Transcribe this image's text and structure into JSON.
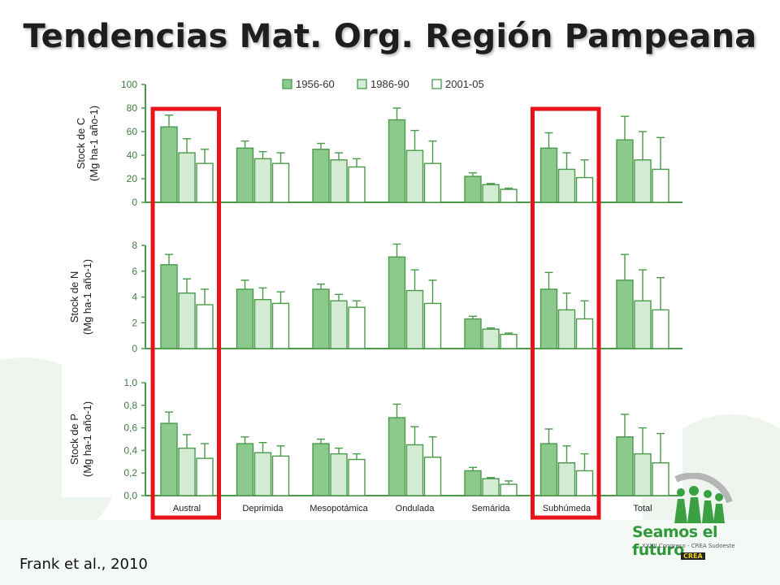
{
  "slide": {
    "title": "Tendencias Mat. Org. Región Pampeana",
    "citation": "Frank et al., 2010"
  },
  "logo": {
    "name": "Seamos el futuro",
    "subtitle": "XXXII Congreso - CREA Sudoeste",
    "badge": "CREA"
  },
  "colors": {
    "bar_dark": "#8cc98c",
    "bar_light": "#d3ead3",
    "bar_white": "#ffffff",
    "axis": "#4a9a4a",
    "highlight": "#e8121b"
  },
  "highlighted_categories": [
    "Austral",
    "Subhúmeda"
  ],
  "chart_data": [
    {
      "type": "bar",
      "ylabel": "Stock de C (Mg ha-1 año-1)",
      "ylim": [
        0,
        100
      ],
      "yticks": [
        "0",
        "20",
        "40",
        "60",
        "80",
        "100"
      ],
      "categories": [
        "Austral",
        "Deprimida",
        "Mesopotámica",
        "Ondulada",
        "Semárida",
        "Subhúmeda",
        "Total"
      ],
      "legend_position": "top",
      "series": [
        {
          "name": "1956-60",
          "values": [
            64,
            46,
            45,
            70,
            22,
            46,
            53
          ],
          "errors": [
            10,
            6,
            5,
            10,
            3,
            13,
            20
          ]
        },
        {
          "name": "1986-90",
          "values": [
            42,
            37,
            36,
            44,
            15,
            28,
            36
          ],
          "errors": [
            12,
            6,
            6,
            17,
            1,
            14,
            24
          ]
        },
        {
          "name": "2001-05",
          "values": [
            33,
            33,
            30,
            33,
            11,
            21,
            28
          ],
          "errors": [
            12,
            9,
            7,
            19,
            1,
            15,
            27
          ]
        }
      ]
    },
    {
      "type": "bar",
      "ylabel": "Stock de N (Mg ha-1 año-1)",
      "ylim": [
        0,
        8
      ],
      "yticks": [
        "0",
        "2",
        "4",
        "6",
        "8"
      ],
      "categories": [
        "Austral",
        "Deprimida",
        "Mesopotámica",
        "Ondulada",
        "Semárida",
        "Subhúmeda",
        "Total"
      ],
      "series": [
        {
          "name": "1956-60",
          "values": [
            6.5,
            4.6,
            4.6,
            7.1,
            2.3,
            4.6,
            5.3
          ],
          "errors": [
            0.8,
            0.7,
            0.4,
            1.0,
            0.2,
            1.3,
            2.0
          ]
        },
        {
          "name": "1986-90",
          "values": [
            4.3,
            3.8,
            3.7,
            4.5,
            1.5,
            3.0,
            3.7
          ],
          "errors": [
            1.1,
            0.9,
            0.5,
            1.6,
            0.1,
            1.3,
            2.4
          ]
        },
        {
          "name": "2001-05",
          "values": [
            3.4,
            3.5,
            3.2,
            3.5,
            1.1,
            2.3,
            3.0
          ],
          "errors": [
            1.2,
            0.9,
            0.5,
            1.8,
            0.1,
            1.4,
            2.5
          ]
        }
      ]
    },
    {
      "type": "bar",
      "ylabel": "Stock de P (Mg ha-1 año-1)",
      "ylim": [
        0,
        1.0
      ],
      "yticks": [
        "0,0",
        "0,2",
        "0,4",
        "0,6",
        "0,8",
        "1,0"
      ],
      "categories": [
        "Austral",
        "Deprimida",
        "Mesopotámica",
        "Ondulada",
        "Semárida",
        "Subhúmeda",
        "Total"
      ],
      "series": [
        {
          "name": "1956-60",
          "values": [
            0.64,
            0.46,
            0.46,
            0.69,
            0.22,
            0.46,
            0.52
          ],
          "errors": [
            0.1,
            0.06,
            0.04,
            0.12,
            0.03,
            0.13,
            0.2
          ]
        },
        {
          "name": "1986-90",
          "values": [
            0.42,
            0.38,
            0.37,
            0.45,
            0.15,
            0.29,
            0.37
          ],
          "errors": [
            0.12,
            0.09,
            0.05,
            0.16,
            0.01,
            0.15,
            0.23
          ]
        },
        {
          "name": "2001-05",
          "values": [
            0.33,
            0.35,
            0.32,
            0.34,
            0.1,
            0.22,
            0.29
          ],
          "errors": [
            0.13,
            0.09,
            0.05,
            0.18,
            0.03,
            0.15,
            0.26
          ]
        }
      ]
    }
  ]
}
